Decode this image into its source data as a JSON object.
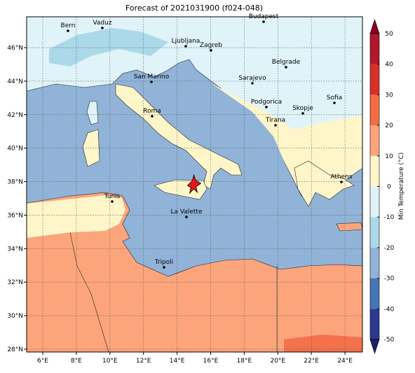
{
  "title": "Forecast of 2021031900 (f024-048)",
  "map": {
    "xlim": [
      5.04,
      25.04
    ],
    "ylim": [
      27.83,
      47.84
    ],
    "xticks": [
      {
        "value": 6,
        "label": "6°E"
      },
      {
        "value": 8,
        "label": "8°E"
      },
      {
        "value": 10,
        "label": "10°E"
      },
      {
        "value": 12,
        "label": "12°E"
      },
      {
        "value": 14,
        "label": "14°E"
      },
      {
        "value": 16,
        "label": "16°E"
      },
      {
        "value": 18,
        "label": "18°E"
      },
      {
        "value": 20,
        "label": "20°E"
      },
      {
        "value": 22,
        "label": "22°E"
      },
      {
        "value": 24,
        "label": "24°E"
      }
    ],
    "yticks": [
      {
        "value": 28,
        "label": "28°N"
      },
      {
        "value": 30,
        "label": "30°N"
      },
      {
        "value": 32,
        "label": "32°N"
      },
      {
        "value": 34,
        "label": "34°N"
      },
      {
        "value": 36,
        "label": "36°N"
      },
      {
        "value": 38,
        "label": "38°N"
      },
      {
        "value": 40,
        "label": "40°N"
      },
      {
        "value": 42,
        "label": "42°N"
      },
      {
        "value": 44,
        "label": "44°N"
      },
      {
        "value": 46,
        "label": "46°N"
      }
    ],
    "grid": true,
    "cities": [
      "Bern",
      "Vaduz",
      "Budapest",
      "Ljubljana",
      "Zagreb",
      "Belgrade",
      "Sarajevo",
      "San Marino",
      "Sofia",
      "Podgorica",
      "Skopje",
      "Roma",
      "Tirana",
      "Athens",
      "Tunis",
      "La Valette",
      "Tripoli"
    ]
  },
  "colorbar": {
    "label": "Min Temperature (°C)",
    "lim": [
      -50,
      50
    ],
    "ticks": [
      -50,
      -40,
      -30,
      -20,
      -10,
      0,
      10,
      20,
      30,
      40,
      50
    ],
    "levels": [
      -50,
      -40,
      -30,
      -20,
      -10,
      0,
      10,
      20,
      30,
      40,
      50
    ],
    "colors": [
      "#2b3990",
      "#4575b4",
      "#91b3d8",
      "#abd9e9",
      "#e0f3f8",
      "#fef6c9",
      "#fca57c",
      "#f46d43",
      "#d73027",
      "#b2182b"
    ],
    "under_color": "#1c1f6b",
    "over_color": "#8b0021"
  }
}
